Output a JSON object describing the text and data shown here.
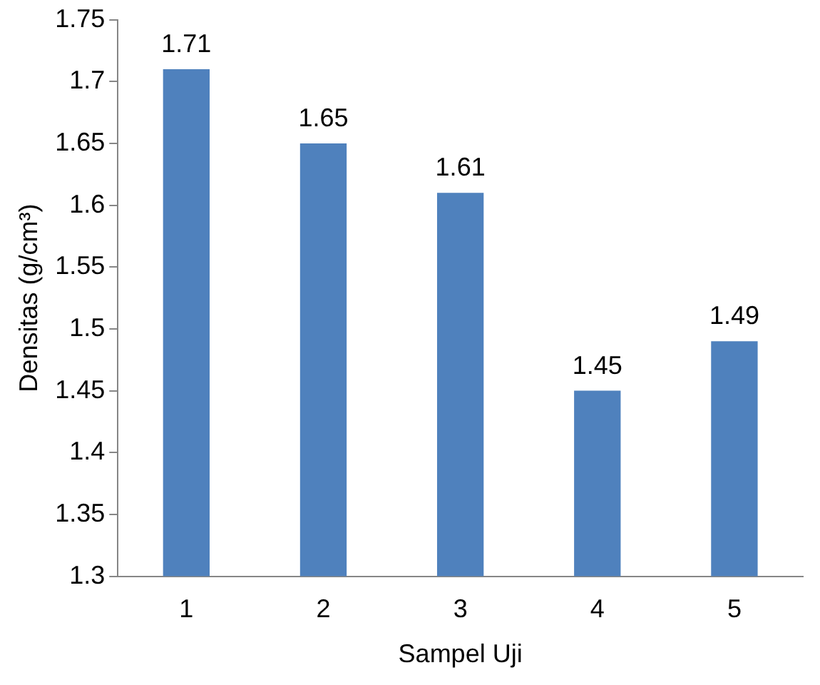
{
  "chart_data": {
    "type": "bar",
    "xlabel": "Sampel Uji",
    "ylabel": "Densitas (g/cm³)",
    "categories": [
      "1",
      "2",
      "3",
      "4",
      "5"
    ],
    "values": [
      1.71,
      1.65,
      1.61,
      1.45,
      1.49
    ],
    "color": "#4f81bd",
    "ylim": [
      1.3,
      1.75
    ],
    "yticks": [
      1.3,
      1.35,
      1.4,
      1.45,
      1.5,
      1.55,
      1.6,
      1.65,
      1.7,
      1.75
    ],
    "grid": false,
    "legend": false,
    "data_labels": true
  }
}
